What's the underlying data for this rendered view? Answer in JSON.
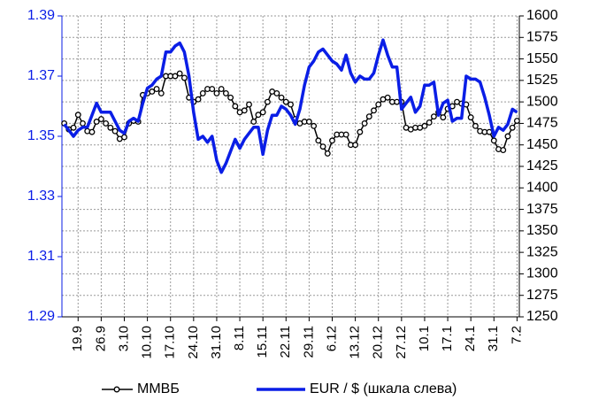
{
  "chart_data": {
    "type": "line",
    "categories": [
      null,
      null,
      null,
      "19.9",
      null,
      null,
      null,
      null,
      "26.9",
      null,
      null,
      null,
      null,
      "3.10",
      null,
      null,
      null,
      null,
      "10.10",
      null,
      null,
      null,
      null,
      "17.10",
      null,
      null,
      null,
      null,
      "24.10",
      null,
      null,
      null,
      null,
      "31.10",
      null,
      null,
      null,
      null,
      "8.11",
      null,
      null,
      null,
      null,
      "15.11",
      null,
      null,
      null,
      null,
      "22.11",
      null,
      null,
      null,
      null,
      "29.11",
      null,
      null,
      null,
      null,
      "6.12",
      null,
      null,
      null,
      null,
      "13.12",
      null,
      null,
      null,
      null,
      "20.12",
      null,
      null,
      null,
      null,
      "27.12",
      null,
      null,
      null,
      null,
      "10.1",
      null,
      null,
      null,
      null,
      "17.1",
      null,
      null,
      null,
      null,
      "24.1",
      null,
      null,
      null,
      null,
      "31.1",
      null,
      null,
      null,
      null,
      "7.2"
    ],
    "series": [
      {
        "name": "ММВБ",
        "color": "#000000",
        "axis": "y2",
        "marker": "circle",
        "values": [
          1475,
          1468,
          1470,
          1485,
          1475,
          1466,
          1465,
          1477,
          1480,
          1475,
          1470,
          1466,
          1457,
          1459,
          1475,
          1478,
          1477,
          1508,
          1510,
          1512,
          1515,
          1510,
          1530,
          1530,
          1530,
          1533,
          1528,
          1505,
          1500,
          1503,
          1510,
          1515,
          1515,
          1510,
          1515,
          1510,
          1505,
          1495,
          1488,
          1490,
          1497,
          1477,
          1485,
          1488,
          1500,
          1512,
          1510,
          1505,
          1500,
          1497,
          1480,
          1475,
          1477,
          1477,
          1472,
          1455,
          1448,
          1440,
          1455,
          1462,
          1462,
          1462,
          1450,
          1450,
          1465,
          1475,
          1483,
          1490,
          1497,
          1503,
          1505,
          1500,
          1500,
          1500,
          1470,
          1468,
          1470,
          1470,
          1472,
          1476,
          1483,
          1488,
          1482,
          1492,
          1495,
          1500,
          1498,
          1497,
          1482,
          1472,
          1466,
          1465,
          1465,
          1455,
          1445,
          1444,
          1460,
          1470,
          1478
        ]
      },
      {
        "name": "EUR / $ (шкала слева)",
        "color": "#0a1ee6",
        "values": [
          1.354,
          1.352,
          1.35,
          1.352,
          1.353,
          1.353,
          1.357,
          1.361,
          1.358,
          1.358,
          1.358,
          1.355,
          1.352,
          1.351,
          1.355,
          1.356,
          1.355,
          1.361,
          1.366,
          1.367,
          1.369,
          1.37,
          1.378,
          1.378,
          1.38,
          1.381,
          1.378,
          1.37,
          1.358,
          1.349,
          1.35,
          1.348,
          1.35,
          1.342,
          1.338,
          1.341,
          1.345,
          1.349,
          1.346,
          1.349,
          1.351,
          1.353,
          1.353,
          1.344,
          1.352,
          1.357,
          1.357,
          1.36,
          1.359,
          1.357,
          1.354,
          1.359,
          1.367,
          1.373,
          1.375,
          1.378,
          1.379,
          1.377,
          1.375,
          1.374,
          1.372,
          1.377,
          1.371,
          1.368,
          1.37,
          1.369,
          1.369,
          1.371,
          1.377,
          1.382,
          1.377,
          1.373,
          1.373,
          1.359,
          1.361,
          1.363,
          1.358,
          1.36,
          1.367,
          1.367,
          1.368,
          1.357,
          1.361,
          1.362,
          1.355,
          1.356,
          1.356,
          1.37,
          1.369,
          1.369,
          1.368,
          1.363,
          1.357,
          1.35,
          1.353,
          1.352,
          1.354,
          1.359,
          1.358
        ]
      }
    ],
    "ylim": [
      1.29,
      1.39
    ],
    "yticks": [
      1.29,
      1.31,
      1.33,
      1.35,
      1.37,
      1.39
    ],
    "y2lim": [
      1250,
      1600
    ],
    "y2ticks": [
      1250,
      1275,
      1300,
      1325,
      1350,
      1375,
      1400,
      1425,
      1450,
      1475,
      1500,
      1525,
      1550,
      1575,
      1600
    ],
    "grid": true,
    "legend": "bottom"
  }
}
